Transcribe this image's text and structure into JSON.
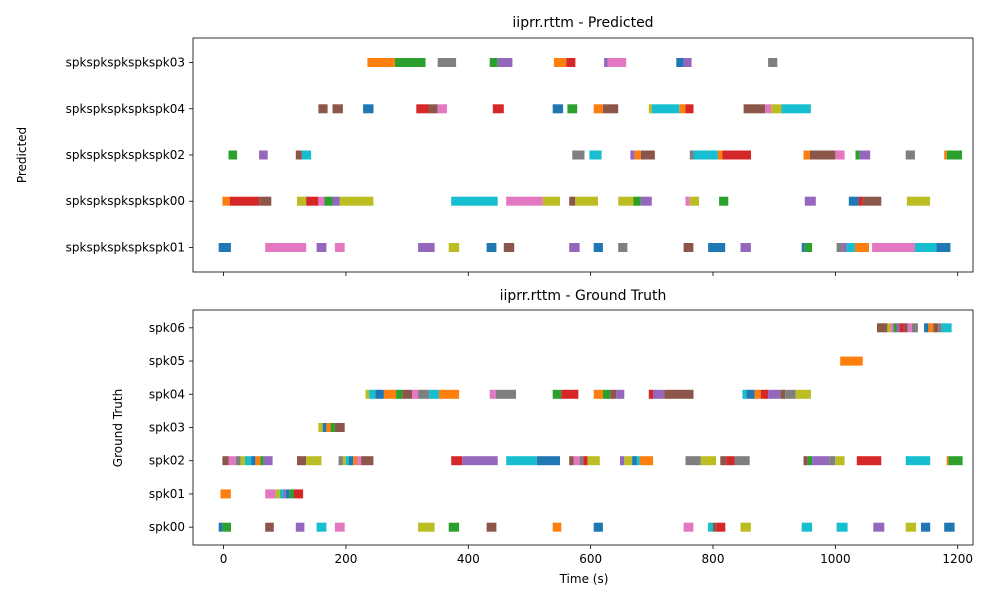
{
  "chart_data": [
    {
      "type": "timeline",
      "title": "iiprr.rttm - Predicted",
      "ylabel": "Predicted",
      "xlabel": "",
      "xlim": [
        -50,
        1225
      ],
      "xticks": [
        0,
        200,
        400,
        600,
        800,
        1000,
        1200
      ],
      "xtick_labels_visible": false,
      "rows": [
        "spkspkspkspkspk01",
        "spkspkspkspkspk00",
        "spkspkspkspkspk02",
        "spkspkspkspkspk04",
        "spkspkspkspkspk03"
      ],
      "segments": {
        "spkspkspkspkspk03": [
          [
            235,
            280,
            "#ff7f0e"
          ],
          [
            280,
            330,
            "#2ca02c"
          ],
          [
            350,
            380,
            "#7f7f7f"
          ],
          [
            435,
            448,
            "#2ca02c"
          ],
          [
            448,
            472,
            "#9467bd"
          ],
          [
            540,
            560,
            "#ff7f0e"
          ],
          [
            560,
            575,
            "#d62728"
          ],
          [
            622,
            628,
            "#9467bd"
          ],
          [
            628,
            658,
            "#e377c2"
          ],
          [
            740,
            752,
            "#1f77b4"
          ],
          [
            752,
            765,
            "#9467bd"
          ],
          [
            890,
            905,
            "#7f7f7f"
          ]
        ],
        "spkspkspkspkspk04": [
          [
            155,
            170,
            "#8c564b"
          ],
          [
            178,
            195,
            "#8c564b"
          ],
          [
            228,
            245,
            "#1f77b4"
          ],
          [
            315,
            335,
            "#d62728"
          ],
          [
            335,
            350,
            "#8c564b"
          ],
          [
            350,
            365,
            "#e377c2"
          ],
          [
            440,
            458,
            "#d62728"
          ],
          [
            538,
            555,
            "#1f77b4"
          ],
          [
            562,
            578,
            "#2ca02c"
          ],
          [
            605,
            620,
            "#ff7f0e"
          ],
          [
            620,
            645,
            "#8c564b"
          ],
          [
            695,
            700,
            "#bcbd22"
          ],
          [
            700,
            745,
            "#17becf"
          ],
          [
            745,
            755,
            "#ff7f0e"
          ],
          [
            755,
            768,
            "#d62728"
          ],
          [
            850,
            885,
            "#8c564b"
          ],
          [
            885,
            895,
            "#e377c2"
          ],
          [
            895,
            912,
            "#bcbd22"
          ],
          [
            912,
            960,
            "#17becf"
          ]
        ],
        "spkspkspkspkspk02": [
          [
            8,
            22,
            "#2ca02c"
          ],
          [
            58,
            72,
            "#9467bd"
          ],
          [
            118,
            128,
            "#8c564b"
          ],
          [
            128,
            143,
            "#17becf"
          ],
          [
            570,
            590,
            "#7f7f7f"
          ],
          [
            598,
            618,
            "#17becf"
          ],
          [
            665,
            672,
            "#9467bd"
          ],
          [
            672,
            682,
            "#ff7f0e"
          ],
          [
            682,
            705,
            "#8c564b"
          ],
          [
            762,
            768,
            "#7f7f7f"
          ],
          [
            768,
            808,
            "#17becf"
          ],
          [
            808,
            815,
            "#ff7f0e"
          ],
          [
            815,
            862,
            "#d62728"
          ],
          [
            948,
            958,
            "#ff7f0e"
          ],
          [
            958,
            1000,
            "#8c564b"
          ],
          [
            1000,
            1015,
            "#e377c2"
          ],
          [
            1033,
            1040,
            "#2ca02c"
          ],
          [
            1040,
            1057,
            "#9467bd"
          ],
          [
            1115,
            1130,
            "#7f7f7f"
          ],
          [
            1178,
            1182,
            "#ff7f0e"
          ],
          [
            1182,
            1207,
            "#2ca02c"
          ]
        ],
        "spkspkspkspkspk00": [
          [
            -2,
            10,
            "#ff7f0e"
          ],
          [
            10,
            58,
            "#d62728"
          ],
          [
            58,
            78,
            "#8c564b"
          ],
          [
            120,
            135,
            "#bcbd22"
          ],
          [
            135,
            155,
            "#d62728"
          ],
          [
            155,
            165,
            "#e377c2"
          ],
          [
            165,
            178,
            "#2ca02c"
          ],
          [
            178,
            190,
            "#9467bd"
          ],
          [
            190,
            245,
            "#bcbd22"
          ],
          [
            372,
            448,
            "#17becf"
          ],
          [
            462,
            522,
            "#e377c2"
          ],
          [
            522,
            550,
            "#bcbd22"
          ],
          [
            565,
            575,
            "#8c564b"
          ],
          [
            575,
            612,
            "#bcbd22"
          ],
          [
            645,
            670,
            "#bcbd22"
          ],
          [
            670,
            682,
            "#2ca02c"
          ],
          [
            682,
            700,
            "#9467bd"
          ],
          [
            755,
            762,
            "#e377c2"
          ],
          [
            762,
            777,
            "#bcbd22"
          ],
          [
            810,
            825,
            "#2ca02c"
          ],
          [
            950,
            968,
            "#9467bd"
          ],
          [
            1022,
            1038,
            "#1f77b4"
          ],
          [
            1038,
            1045,
            "#d62728"
          ],
          [
            1045,
            1075,
            "#8c564b"
          ],
          [
            1117,
            1155,
            "#bcbd22"
          ]
        ],
        "spkspkspkspkspk01": [
          [
            -8,
            12,
            "#1f77b4"
          ],
          [
            68,
            135,
            "#e377c2"
          ],
          [
            152,
            168,
            "#9467bd"
          ],
          [
            182,
            198,
            "#e377c2"
          ],
          [
            318,
            345,
            "#9467bd"
          ],
          [
            368,
            385,
            "#bcbd22"
          ],
          [
            430,
            446,
            "#1f77b4"
          ],
          [
            458,
            475,
            "#8c564b"
          ],
          [
            565,
            582,
            "#9467bd"
          ],
          [
            605,
            620,
            "#1f77b4"
          ],
          [
            645,
            660,
            "#7f7f7f"
          ],
          [
            752,
            768,
            "#8c564b"
          ],
          [
            792,
            820,
            "#1f77b4"
          ],
          [
            845,
            862,
            "#9467bd"
          ],
          [
            945,
            950,
            "#1f77b4"
          ],
          [
            950,
            962,
            "#2ca02c"
          ],
          [
            1002,
            1012,
            "#7f7f7f"
          ],
          [
            1012,
            1018,
            "#9467bd"
          ],
          [
            1018,
            1032,
            "#17becf"
          ],
          [
            1032,
            1055,
            "#ff7f0e"
          ],
          [
            1060,
            1130,
            "#e377c2"
          ],
          [
            1130,
            1165,
            "#17becf"
          ],
          [
            1165,
            1188,
            "#1f77b4"
          ]
        ]
      }
    },
    {
      "type": "timeline",
      "title": "iiprr.rttm - Ground Truth",
      "ylabel": "Ground Truth",
      "xlabel": "Time (s)",
      "xlim": [
        -50,
        1225
      ],
      "xticks": [
        0,
        200,
        400,
        600,
        800,
        1000,
        1200
      ],
      "xtick_labels_visible": true,
      "rows": [
        "spk00",
        "spk01",
        "spk02",
        "spk03",
        "spk04",
        "spk05",
        "spk06"
      ],
      "segments": {
        "spk06": [
          [
            1068,
            1085,
            "#8c564b"
          ],
          [
            1085,
            1090,
            "#bcbd22"
          ],
          [
            1090,
            1095,
            "#e377c2"
          ],
          [
            1095,
            1100,
            "#2ca02c"
          ],
          [
            1100,
            1105,
            "#9467bd"
          ],
          [
            1105,
            1112,
            "#d62728"
          ],
          [
            1112,
            1118,
            "#8c564b"
          ],
          [
            1118,
            1125,
            "#e377c2"
          ],
          [
            1125,
            1135,
            "#7f7f7f"
          ],
          [
            1145,
            1152,
            "#1f77b4"
          ],
          [
            1152,
            1160,
            "#ff7f0e"
          ],
          [
            1160,
            1168,
            "#8c564b"
          ],
          [
            1168,
            1174,
            "#7f7f7f"
          ],
          [
            1174,
            1190,
            "#17becf"
          ]
        ],
        "spk05": [
          [
            1008,
            1045,
            "#ff7f0e"
          ]
        ],
        "spk04": [
          [
            232,
            238,
            "#bcbd22"
          ],
          [
            238,
            248,
            "#17becf"
          ],
          [
            248,
            262,
            "#1f77b4"
          ],
          [
            262,
            282,
            "#ff7f0e"
          ],
          [
            282,
            292,
            "#2ca02c"
          ],
          [
            292,
            308,
            "#8c564b"
          ],
          [
            308,
            318,
            "#e377c2"
          ],
          [
            318,
            336,
            "#7f7f7f"
          ],
          [
            336,
            352,
            "#17becf"
          ],
          [
            352,
            385,
            "#ff7f0e"
          ],
          [
            435,
            445,
            "#e377c2"
          ],
          [
            445,
            478,
            "#7f7f7f"
          ],
          [
            538,
            552,
            "#2ca02c"
          ],
          [
            552,
            580,
            "#d62728"
          ],
          [
            605,
            620,
            "#ff7f0e"
          ],
          [
            620,
            632,
            "#2ca02c"
          ],
          [
            632,
            642,
            "#8c564b"
          ],
          [
            642,
            655,
            "#9467bd"
          ],
          [
            695,
            702,
            "#d62728"
          ],
          [
            702,
            720,
            "#9467bd"
          ],
          [
            720,
            768,
            "#8c564b"
          ],
          [
            848,
            855,
            "#17becf"
          ],
          [
            855,
            868,
            "#1f77b4"
          ],
          [
            868,
            878,
            "#ff7f0e"
          ],
          [
            878,
            890,
            "#d62728"
          ],
          [
            890,
            910,
            "#9467bd"
          ],
          [
            910,
            918,
            "#8c564b"
          ],
          [
            918,
            935,
            "#7f7f7f"
          ],
          [
            935,
            960,
            "#bcbd22"
          ]
        ],
        "spk03": [
          [
            155,
            162,
            "#bcbd22"
          ],
          [
            162,
            168,
            "#1f77b4"
          ],
          [
            168,
            175,
            "#ff7f0e"
          ],
          [
            175,
            182,
            "#2ca02c"
          ],
          [
            182,
            198,
            "#8c564b"
          ]
        ],
        "spk02": [
          [
            -2,
            8,
            "#8c564b"
          ],
          [
            8,
            20,
            "#e377c2"
          ],
          [
            20,
            28,
            "#7f7f7f"
          ],
          [
            28,
            35,
            "#bcbd22"
          ],
          [
            35,
            45,
            "#17becf"
          ],
          [
            45,
            52,
            "#1f77b4"
          ],
          [
            52,
            60,
            "#ff7f0e"
          ],
          [
            60,
            65,
            "#2ca02c"
          ],
          [
            65,
            80,
            "#9467bd"
          ],
          [
            120,
            135,
            "#8c564b"
          ],
          [
            135,
            160,
            "#bcbd22"
          ],
          [
            188,
            195,
            "#7f7f7f"
          ],
          [
            195,
            200,
            "#bcbd22"
          ],
          [
            200,
            205,
            "#17becf"
          ],
          [
            205,
            212,
            "#1f77b4"
          ],
          [
            212,
            218,
            "#ff7f0e"
          ],
          [
            218,
            225,
            "#e377c2"
          ],
          [
            225,
            245,
            "#8c564b"
          ],
          [
            372,
            390,
            "#d62728"
          ],
          [
            390,
            448,
            "#9467bd"
          ],
          [
            462,
            512,
            "#17becf"
          ],
          [
            512,
            550,
            "#1f77b4"
          ],
          [
            565,
            572,
            "#8c564b"
          ],
          [
            572,
            582,
            "#e377c2"
          ],
          [
            582,
            588,
            "#7f7f7f"
          ],
          [
            588,
            595,
            "#d62728"
          ],
          [
            595,
            615,
            "#bcbd22"
          ],
          [
            648,
            655,
            "#9467bd"
          ],
          [
            655,
            668,
            "#bcbd22"
          ],
          [
            668,
            675,
            "#1f77b4"
          ],
          [
            675,
            680,
            "#17becf"
          ],
          [
            680,
            702,
            "#ff7f0e"
          ],
          [
            755,
            780,
            "#7f7f7f"
          ],
          [
            780,
            805,
            "#bcbd22"
          ],
          [
            812,
            822,
            "#8c564b"
          ],
          [
            822,
            835,
            "#d62728"
          ],
          [
            835,
            860,
            "#7f7f7f"
          ],
          [
            948,
            955,
            "#8c564b"
          ],
          [
            955,
            962,
            "#2ca02c"
          ],
          [
            962,
            990,
            "#9467bd"
          ],
          [
            990,
            1000,
            "#7f7f7f"
          ],
          [
            1000,
            1015,
            "#bcbd22"
          ],
          [
            1035,
            1075,
            "#d62728"
          ],
          [
            1115,
            1155,
            "#17becf"
          ],
          [
            1182,
            1185,
            "#ff7f0e"
          ],
          [
            1185,
            1208,
            "#2ca02c"
          ]
        ],
        "spk01": [
          [
            -5,
            12,
            "#ff7f0e"
          ],
          [
            68,
            85,
            "#e377c2"
          ],
          [
            85,
            92,
            "#bcbd22"
          ],
          [
            92,
            98,
            "#17becf"
          ],
          [
            98,
            102,
            "#9467bd"
          ],
          [
            102,
            108,
            "#1f77b4"
          ],
          [
            108,
            115,
            "#2ca02c"
          ],
          [
            115,
            130,
            "#d62728"
          ]
        ],
        "spk00": [
          [
            -8,
            -2,
            "#1f77b4"
          ],
          [
            -2,
            12,
            "#2ca02c"
          ],
          [
            68,
            82,
            "#8c564b"
          ],
          [
            118,
            132,
            "#9467bd"
          ],
          [
            152,
            168,
            "#17becf"
          ],
          [
            182,
            198,
            "#e377c2"
          ],
          [
            318,
            345,
            "#bcbd22"
          ],
          [
            368,
            385,
            "#2ca02c"
          ],
          [
            430,
            446,
            "#8c564b"
          ],
          [
            538,
            552,
            "#ff7f0e"
          ],
          [
            605,
            620,
            "#1f77b4"
          ],
          [
            752,
            768,
            "#e377c2"
          ],
          [
            792,
            800,
            "#17becf"
          ],
          [
            800,
            805,
            "#8c564b"
          ],
          [
            805,
            820,
            "#d62728"
          ],
          [
            845,
            862,
            "#bcbd22"
          ],
          [
            945,
            962,
            "#17becf"
          ],
          [
            1002,
            1020,
            "#17becf"
          ],
          [
            1062,
            1080,
            "#9467bd"
          ],
          [
            1115,
            1132,
            "#bcbd22"
          ],
          [
            1140,
            1155,
            "#1f77b4"
          ],
          [
            1178,
            1195,
            "#1f77b4"
          ]
        ]
      }
    }
  ]
}
